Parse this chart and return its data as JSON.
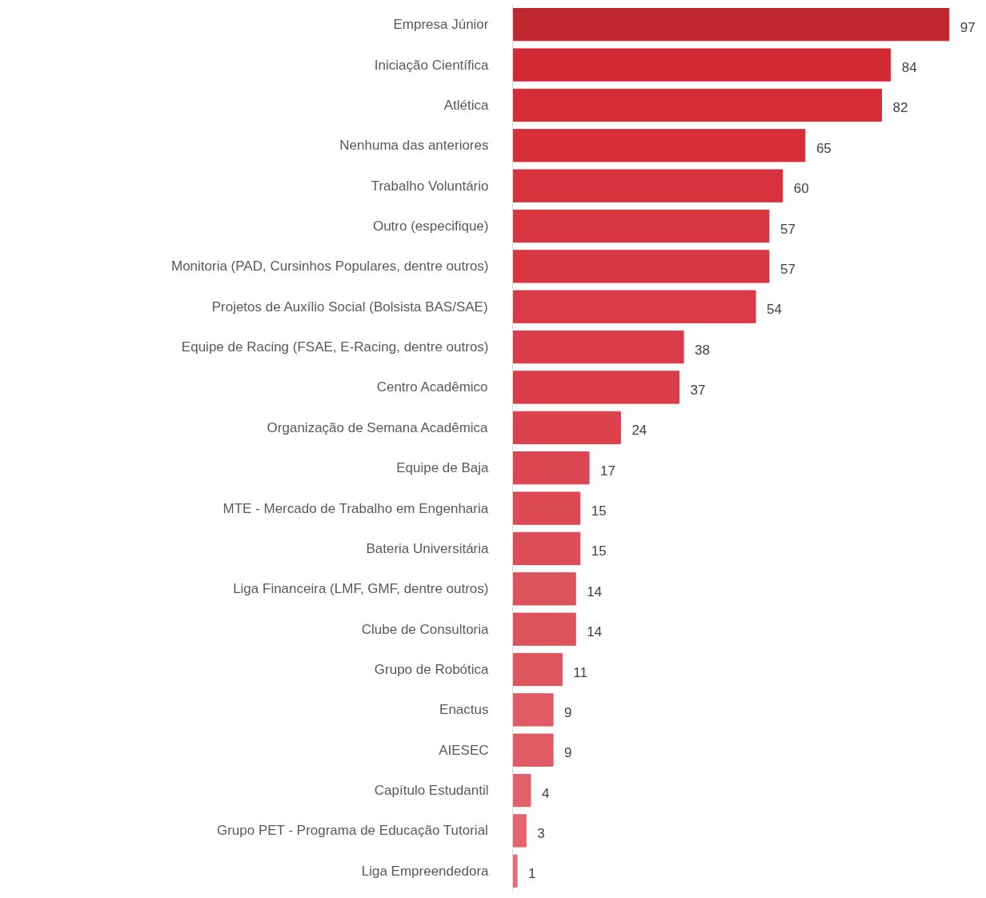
{
  "chart_data": {
    "type": "bar",
    "orientation": "horizontal",
    "data_labels": true,
    "grid": false,
    "categories": [
      "Empresa Júnior",
      "Iniciação Científica",
      "Atlética",
      "Nenhuma das anteriores",
      "Trabalho Voluntário",
      "Outro (especifique)",
      "Monitoria (PAD, Cursinhos Populares, dentre outros)",
      "Projetos de Auxílio Social (Bolsista BAS/SAE)",
      "Equipe de Racing (FSAE, E-Racing, dentre outros)",
      "Centro Acadêmico",
      "Organização de Semana Acadêmica",
      "Equipe de Baja",
      "MTE - Mercado de Trabalho em Engenharia",
      "Bateria Universitária",
      "Liga Financeira (LMF, GMF, dentre outros)",
      "Clube de Consultoria",
      "Grupo de Robótica",
      "Enactus",
      "AIESEC",
      "Capítulo Estudantil",
      "Grupo PET - Programa de Educação Tutorial",
      "Liga Empreendedora"
    ],
    "values": [
      97,
      84,
      82,
      65,
      60,
      57,
      57,
      54,
      38,
      37,
      24,
      17,
      15,
      15,
      14,
      14,
      11,
      9,
      9,
      4,
      3,
      1
    ],
    "colors": [
      "#bf262d",
      "#d22a34",
      "#d52c37",
      "#d62f3a",
      "#d7333e",
      "#d83641",
      "#d83641",
      "#d93a45",
      "#da3d48",
      "#da3d48",
      "#db424c",
      "#dc4650",
      "#dc4a54",
      "#dd4d57",
      "#de525b",
      "#de525b",
      "#df565f",
      "#e05b63",
      "#e05b63",
      "#e26169",
      "#e3666e",
      "#e56c74"
    ]
  }
}
